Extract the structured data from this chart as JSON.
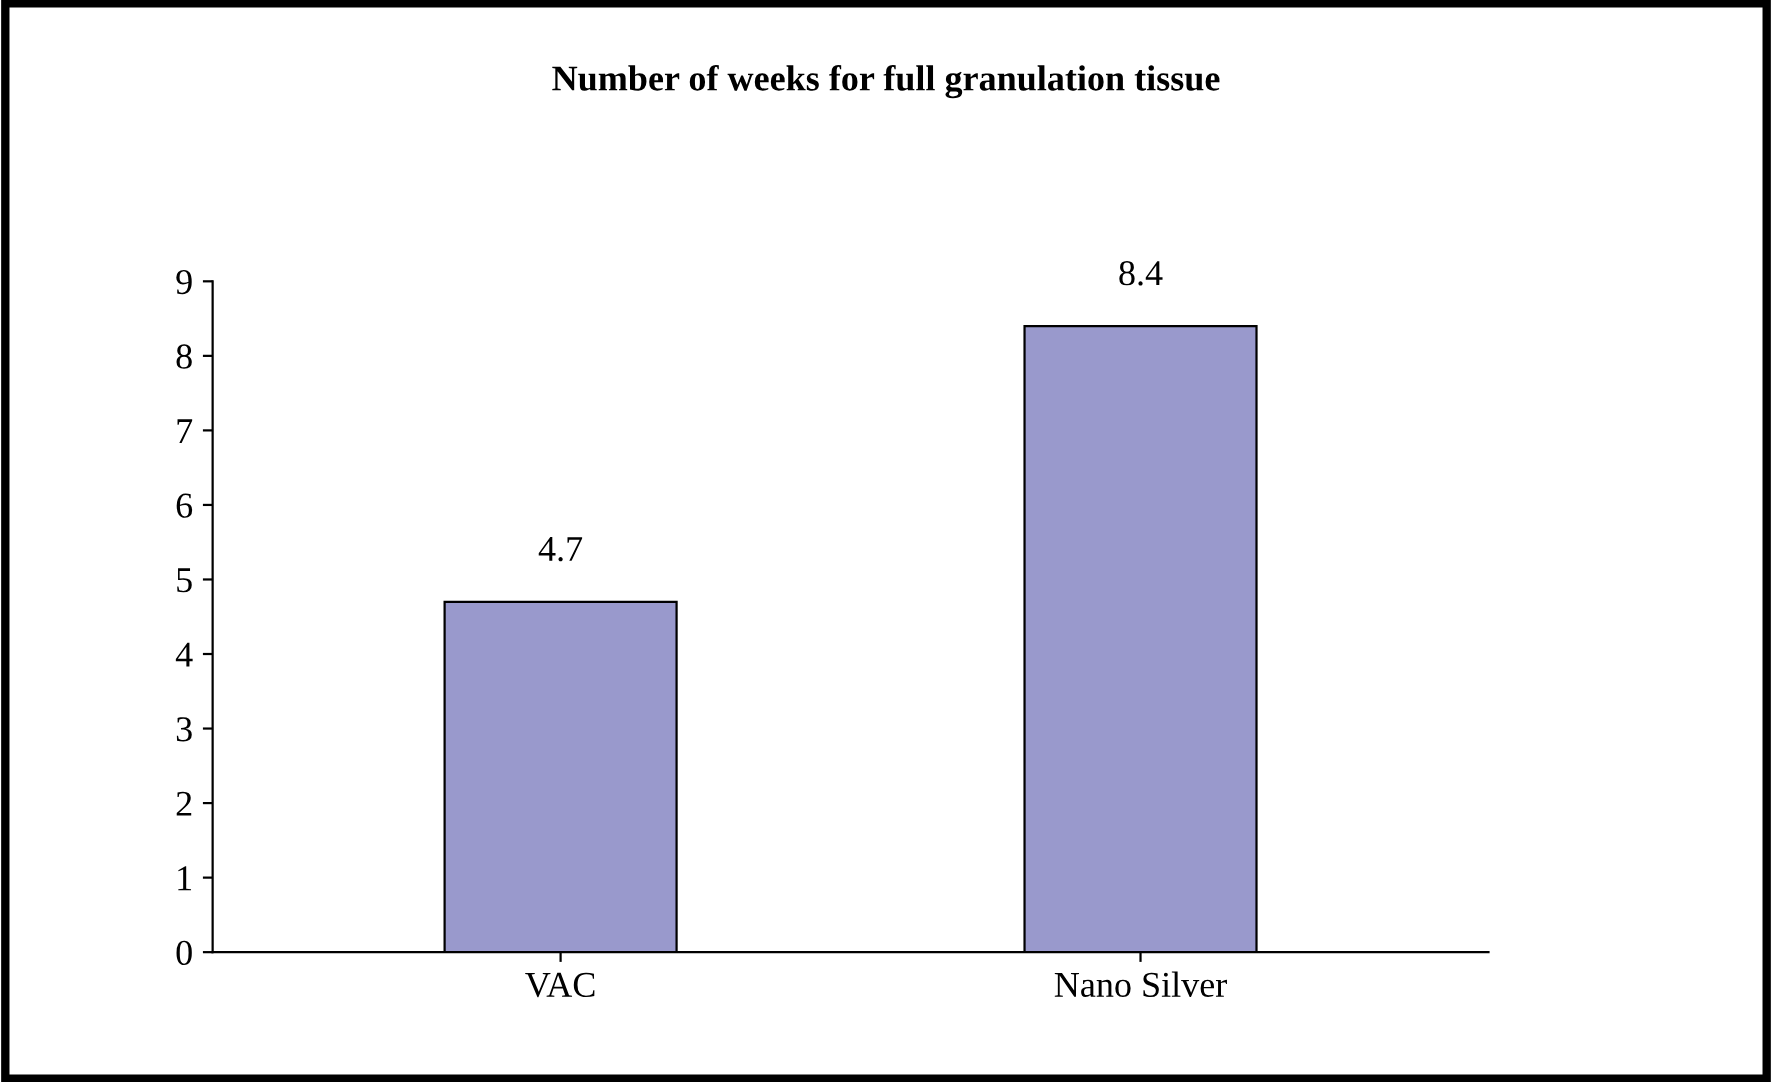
{
  "chart_data": {
    "type": "bar",
    "title": "Number of weeks for full granulation tissue",
    "categories": [
      "VAC",
      "Nano Silver"
    ],
    "values": [
      4.7,
      8.4
    ],
    "color": "#9999cc",
    "ylim": [
      0,
      9
    ],
    "yticks": [
      0,
      1,
      2,
      3,
      4,
      5,
      6,
      7,
      8,
      9
    ],
    "data_labels": true,
    "grid": false,
    "legend": false
  }
}
